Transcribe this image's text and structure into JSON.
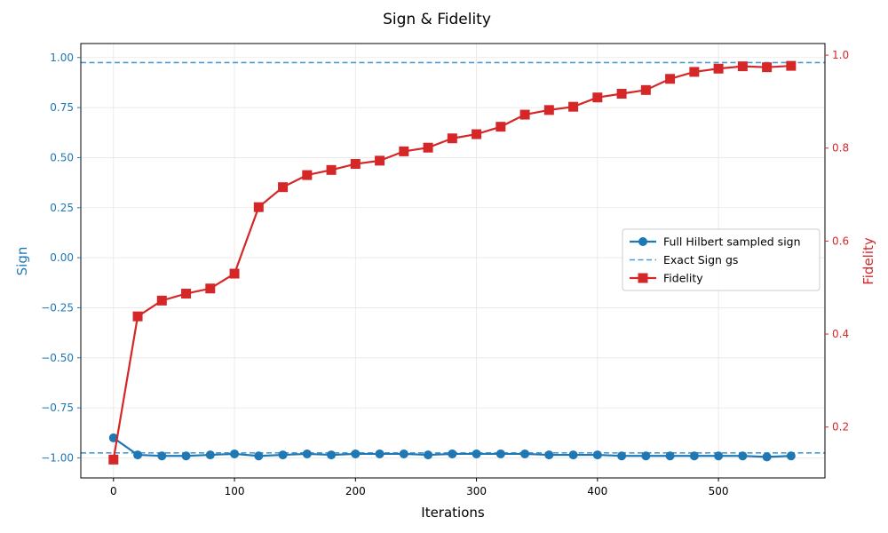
{
  "chart_data": {
    "type": "line",
    "title": "Sign & Fidelity",
    "xlabel": "Iterations",
    "ylabel": "Sign",
    "y2label": "Fidelity",
    "xlim": [
      -27,
      588
    ],
    "ylim": [
      -1.1,
      1.07
    ],
    "y2lim": [
      0.0905,
      1.025
    ],
    "xticks": [
      0,
      100,
      200,
      300,
      400,
      500
    ],
    "yticks": [
      1.0,
      0.75,
      0.5,
      0.25,
      0.0,
      -0.25,
      -0.5,
      -0.75,
      -1.0
    ],
    "ytick_labels": [
      "1.00",
      "0.75",
      "0.50",
      "0.25",
      "0.00",
      "−0.25",
      "−0.50",
      "−0.75",
      "−1.00"
    ],
    "y2ticks": [
      1.0,
      0.8,
      0.6,
      0.4,
      0.2
    ],
    "y2tick_labels": [
      "1.0",
      "0.8",
      "0.6",
      "0.4",
      "0.2"
    ],
    "grid": true,
    "legend_position": "center-right",
    "colors": {
      "sign": "#1f77b4",
      "exact": "#4a9bd0",
      "fidelity": "#d62728",
      "grid": "#e6e6e6",
      "axis": "#000000"
    },
    "x": [
      0,
      20,
      40,
      60,
      80,
      100,
      120,
      140,
      160,
      180,
      200,
      220,
      240,
      260,
      280,
      300,
      320,
      340,
      360,
      380,
      400,
      420,
      440,
      460,
      480,
      500,
      520,
      540,
      560
    ],
    "series": [
      {
        "name": "Full Hilbert sampled sign",
        "axis": "left",
        "marker": "circle",
        "style": "solid",
        "values": [
          -0.9,
          -0.985,
          -0.99,
          -0.99,
          -0.985,
          -0.98,
          -0.99,
          -0.985,
          -0.98,
          -0.985,
          -0.98,
          -0.98,
          -0.98,
          -0.985,
          -0.98,
          -0.98,
          -0.98,
          -0.98,
          -0.985,
          -0.985,
          -0.985,
          -0.99,
          -0.99,
          -0.99,
          -0.99,
          -0.99,
          -0.99,
          -0.995,
          -0.99
        ]
      },
      {
        "name": "Exact Sign gs",
        "axis": "left",
        "marker": "none",
        "style": "dashed",
        "hlines": [
          0.975,
          -0.975
        ]
      },
      {
        "name": "Fidelity",
        "axis": "right",
        "marker": "square",
        "style": "solid",
        "values": [
          0.13,
          0.438,
          0.472,
          0.487,
          0.498,
          0.53,
          0.673,
          0.716,
          0.742,
          0.753,
          0.766,
          0.773,
          0.793,
          0.801,
          0.821,
          0.83,
          0.846,
          0.872,
          0.882,
          0.889,
          0.909,
          0.917,
          0.925,
          0.949,
          0.964,
          0.971,
          0.976,
          0.974,
          0.977
        ]
      }
    ]
  }
}
